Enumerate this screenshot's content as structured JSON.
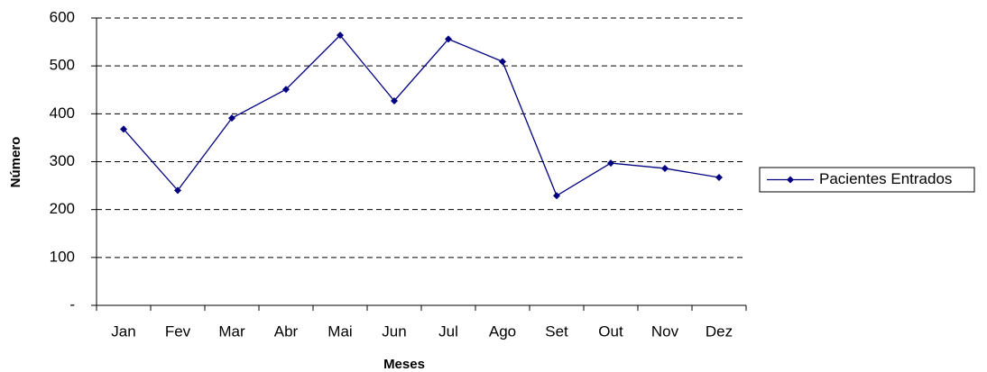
{
  "chart_data": {
    "type": "line",
    "x_label": "Meses",
    "y_label": "Número",
    "categories": [
      "Jan",
      "Fev",
      "Mar",
      "Abr",
      "Mai",
      "Jun",
      "Jul",
      "Ago",
      "Set",
      "Out",
      "Nov",
      "Dez"
    ],
    "series": [
      {
        "name": "Pacientes Entrados",
        "color": "#000080",
        "values": [
          368,
          240,
          391,
          451,
          564,
          427,
          556,
          509,
          229,
          297,
          286,
          267
        ]
      }
    ],
    "ylim": [
      0,
      600
    ],
    "yticks": [
      {
        "value": 0,
        "label": "-"
      },
      100,
      200,
      300,
      400,
      500,
      600
    ],
    "grid": true,
    "legend": "right"
  }
}
